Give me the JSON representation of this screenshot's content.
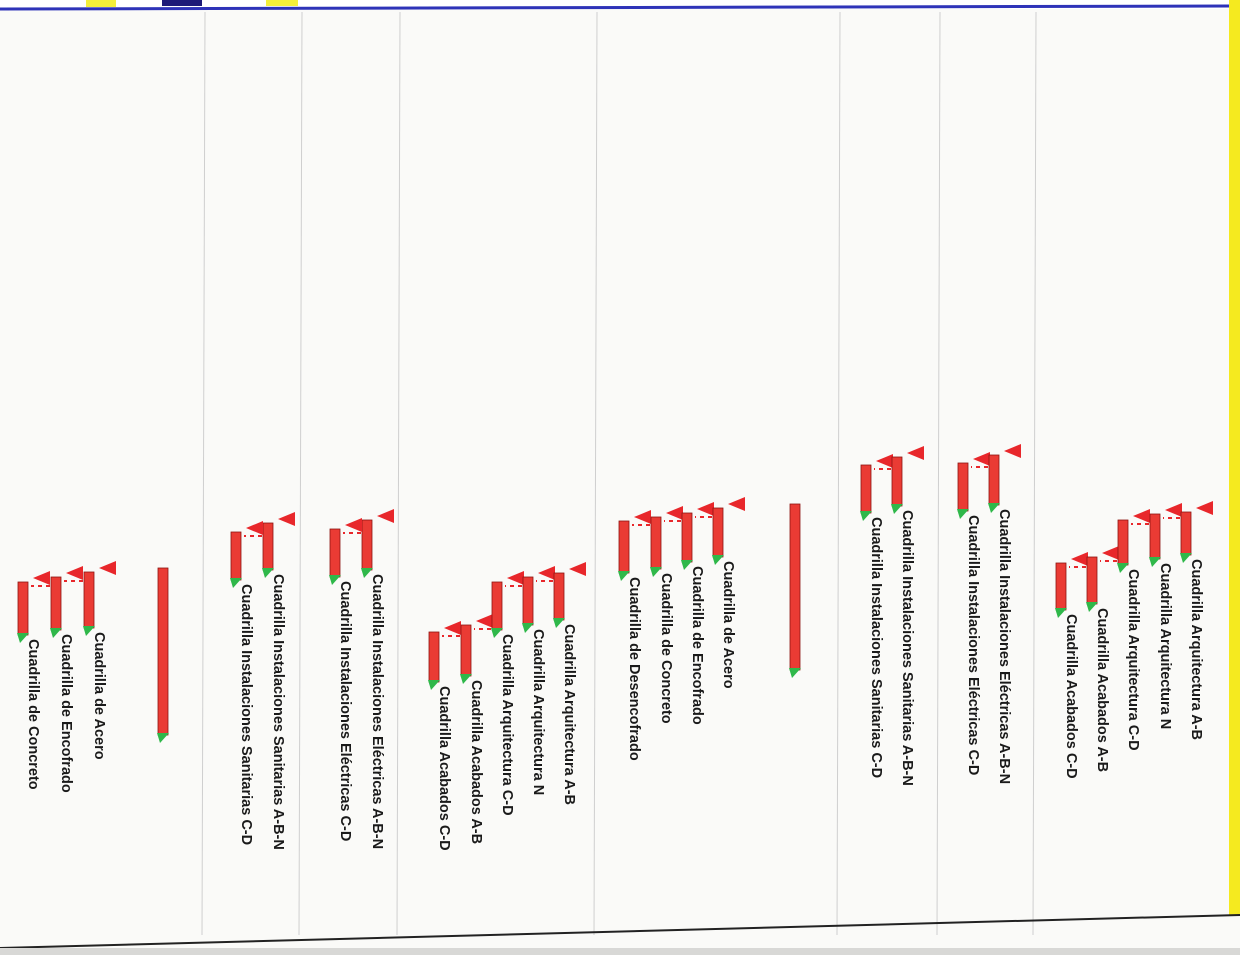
{
  "gantt": {
    "colors": {
      "bar": "#ea3b34",
      "bar_edge": "#8e1511",
      "marker": "#e8272b",
      "link": "#e8272b",
      "start_marker": "#2fb84a",
      "header_yellow": "#f4ef3a",
      "header_navy": "#1d1a78",
      "header_rule": "#2e33b8",
      "side_strip": "#f5ea1f",
      "grid_line": "#cfcfcf",
      "border": "#222222"
    },
    "header_icons": [
      "yellow-swatch",
      "navy-swatch",
      "yellow-swatch"
    ],
    "tasks": [
      {
        "label": "Cuadrilla Instalaciones Sanitarias A-B-N"
      },
      {
        "label": "Cuadrilla Instalaciones Eléctricas A-B-N"
      },
      {
        "label": "Cuadrilla de Acero"
      },
      {
        "label": "Cuadrilla de Encofrado"
      },
      {
        "label": "Cuadrilla de Concreto"
      },
      {
        "label": "Cuadrilla Instalaciones Sanitarias C-D"
      },
      {
        "label": "Cuadrilla Instalaciones Eléctricas C-D"
      },
      {
        "label": "Cuadrilla Acabados C-D"
      },
      {
        "label": "Cuadrilla Acabados A-B"
      },
      {
        "label": "Cuadrilla Arquitectura C-D"
      },
      {
        "label": "Cuadrilla Arquitectura N"
      },
      {
        "label": "Cuadrilla Arquitectura A-B"
      },
      {
        "label": "Cuadrilla de Desencofrado"
      },
      {
        "label": "Cuadrilla de Concreto"
      },
      {
        "label": "Cuadrilla de Encofrado"
      },
      {
        "label": "Cuadrilla de Acero"
      },
      {
        "label": "Cuadrilla Instalaciones Sanitarias C-D"
      },
      {
        "label": "Cuadrilla Instalaciones Sanitarias A-B-N"
      },
      {
        "label": "Cuadrilla Instalaciones Eléctricas C-D"
      },
      {
        "label": "Cuadrilla Instalaciones Eléctricas A-B-N"
      },
      {
        "label": "Cuadrilla Acabados C-D"
      },
      {
        "label": "Cuadrilla Acabados A-B"
      },
      {
        "label": "Cuadrilla Arquitectura C-D"
      },
      {
        "label": "Cuadrilla Arquitectura N"
      },
      {
        "label": "Cuadrilla Arquitectura A-B"
      }
    ]
  }
}
